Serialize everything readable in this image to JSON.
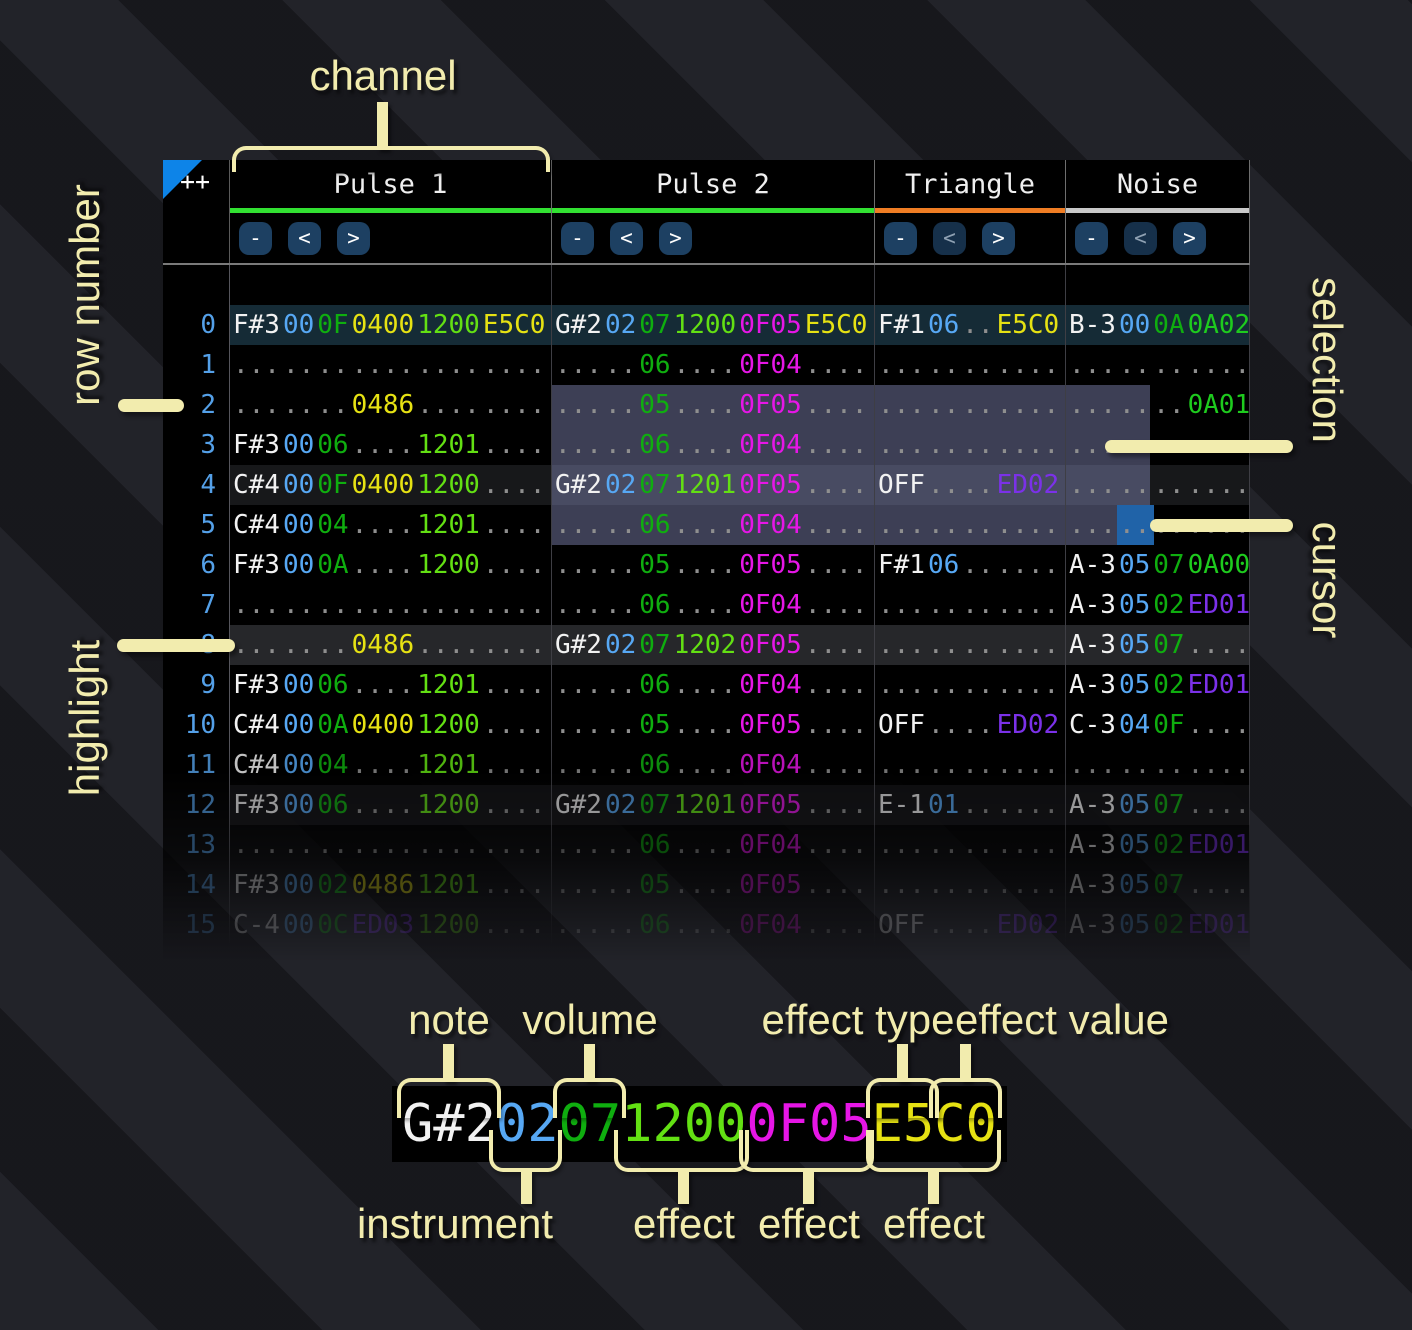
{
  "annotations": {
    "channel": "channel",
    "row_number": "row number",
    "selection": "selection",
    "cursor": "cursor",
    "highlight": "highlight",
    "note": "note",
    "volume": "volume",
    "effect_type": "effect type",
    "effect_value": "effect value",
    "instrument": "instrument",
    "effect": "effect"
  },
  "colors": {
    "note": "#f2f2f2",
    "ins": "#57a8f4",
    "vol": "#0fae0f",
    "fxy": "#e6e213",
    "fxl": "#63e013",
    "fxm": "#e616e6",
    "fxp": "#7b31e8",
    "fxg": "#1ecb1e",
    "dot": "#8f8f8f",
    "rownum": "#54a0e8",
    "cream": "#f2ecae",
    "selection": "rgba(124,129,173,0.49)",
    "cursor": "#2063a8",
    "hl0": "#152b36",
    "hl1": "#17181a",
    "hl2": "#26272a",
    "corner_triangle": "#0d84e8"
  },
  "tracker": {
    "corner": "++",
    "channels": [
      {
        "name": "Pulse 1",
        "bar": "#32e132",
        "buttons": [
          "-",
          "<",
          ">"
        ],
        "less_disabled": false
      },
      {
        "name": "Pulse 2",
        "bar": "#32e132",
        "buttons": [
          "-",
          "<",
          ">"
        ],
        "less_disabled": false
      },
      {
        "name": "Triangle",
        "bar": "#ef7d24",
        "buttons": [
          "-",
          "<",
          ">"
        ],
        "less_disabled": true
      },
      {
        "name": "Noise",
        "bar": "#c8c8c8",
        "buttons": [
          "-",
          "<",
          ">"
        ],
        "less_disabled": true
      }
    ],
    "highlight_rows": {
      "0": "hl0",
      "4": "hl1",
      "8": "hl2",
      "12": "hl1"
    },
    "rows": [
      {
        "n": "0",
        "p1": [
          "F#3",
          "00",
          "0F",
          "0400",
          "1200",
          "E5C0"
        ],
        "p2": [
          "G#2",
          "02",
          "07",
          "1200",
          "0F05",
          "E5C0"
        ],
        "t": [
          "F#1",
          "06",
          "..",
          "E5C0"
        ],
        "no": [
          "B-3",
          "00",
          "0A",
          "0A02"
        ]
      },
      {
        "n": "1",
        "p1": [
          "...",
          "..",
          "..",
          "....",
          "....",
          "...."
        ],
        "p2": [
          "...",
          "..",
          "06",
          "....",
          "0F04",
          "...."
        ],
        "t": [
          "...",
          "..",
          "..",
          "...."
        ],
        "no": [
          "...",
          "..",
          "..",
          "...."
        ]
      },
      {
        "n": "2",
        "p1": [
          "...",
          "..",
          "..",
          "0486",
          "....",
          "...."
        ],
        "p2": [
          "...",
          "..",
          "05",
          "....",
          "0F05",
          "...."
        ],
        "t": [
          "...",
          "..",
          "..",
          "...."
        ],
        "no": [
          "...",
          "..",
          "..",
          "0A01"
        ]
      },
      {
        "n": "3",
        "p1": [
          "F#3",
          "00",
          "06",
          "....",
          "1201",
          "...."
        ],
        "p2": [
          "...",
          "..",
          "06",
          "....",
          "0F04",
          "...."
        ],
        "t": [
          "...",
          "..",
          "..",
          "...."
        ],
        "no": [
          "...",
          "..",
          "..",
          "...."
        ]
      },
      {
        "n": "4",
        "p1": [
          "C#4",
          "00",
          "0F",
          "0400",
          "1200",
          "...."
        ],
        "p2": [
          "G#2",
          "02",
          "07",
          "1201",
          "0F05",
          "...."
        ],
        "t": [
          "OFF",
          "..",
          "..",
          "ED02"
        ],
        "no": [
          "...",
          "..",
          "..",
          "...."
        ]
      },
      {
        "n": "5",
        "p1": [
          "C#4",
          "00",
          "04",
          "....",
          "1201",
          "...."
        ],
        "p2": [
          "...",
          "..",
          "06",
          "....",
          "0F04",
          "...."
        ],
        "t": [
          "...",
          "..",
          "..",
          "...."
        ],
        "no": [
          "...",
          "..",
          "..",
          "...."
        ]
      },
      {
        "n": "6",
        "p1": [
          "F#3",
          "00",
          "0A",
          "....",
          "1200",
          "...."
        ],
        "p2": [
          "...",
          "..",
          "05",
          "....",
          "0F05",
          "...."
        ],
        "t": [
          "F#1",
          "06",
          "..",
          "...."
        ],
        "no": [
          "A-3",
          "05",
          "07",
          "0A00"
        ]
      },
      {
        "n": "7",
        "p1": [
          "...",
          "..",
          "..",
          "....",
          "....",
          "...."
        ],
        "p2": [
          "...",
          "..",
          "06",
          "....",
          "0F04",
          "...."
        ],
        "t": [
          "...",
          "..",
          "..",
          "...."
        ],
        "no": [
          "A-3",
          "05",
          "02",
          "ED01"
        ]
      },
      {
        "n": "8",
        "p1": [
          "...",
          "..",
          "..",
          "0486",
          "....",
          "...."
        ],
        "p2": [
          "G#2",
          "02",
          "07",
          "1202",
          "0F05",
          "...."
        ],
        "t": [
          "...",
          "..",
          "..",
          "...."
        ],
        "no": [
          "A-3",
          "05",
          "07",
          "...."
        ]
      },
      {
        "n": "9",
        "p1": [
          "F#3",
          "00",
          "06",
          "....",
          "1201",
          "...."
        ],
        "p2": [
          "...",
          "..",
          "06",
          "....",
          "0F04",
          "...."
        ],
        "t": [
          "...",
          "..",
          "..",
          "...."
        ],
        "no": [
          "A-3",
          "05",
          "02",
          "ED01"
        ]
      },
      {
        "n": "10",
        "p1": [
          "C#4",
          "00",
          "0A",
          "0400",
          "1200",
          "...."
        ],
        "p2": [
          "...",
          "..",
          "05",
          "....",
          "0F05",
          "...."
        ],
        "t": [
          "OFF",
          "..",
          "..",
          "ED02"
        ],
        "no": [
          "C-3",
          "04",
          "0F",
          "...."
        ]
      },
      {
        "n": "11",
        "p1": [
          "C#4",
          "00",
          "04",
          "....",
          "1201",
          "...."
        ],
        "p2": [
          "...",
          "..",
          "06",
          "....",
          "0F04",
          "...."
        ],
        "t": [
          "...",
          "..",
          "..",
          "...."
        ],
        "no": [
          "...",
          "..",
          "..",
          "...."
        ]
      },
      {
        "n": "12",
        "p1": [
          "F#3",
          "00",
          "06",
          "....",
          "1200",
          "...."
        ],
        "p2": [
          "G#2",
          "02",
          "07",
          "1201",
          "0F05",
          "...."
        ],
        "t": [
          "E-1",
          "01",
          "..",
          "...."
        ],
        "no": [
          "A-3",
          "05",
          "07",
          "...."
        ]
      },
      {
        "n": "13",
        "p1": [
          "...",
          "..",
          "..",
          "....",
          "....",
          "...."
        ],
        "p2": [
          "...",
          "..",
          "06",
          "....",
          "0F04",
          "...."
        ],
        "t": [
          "...",
          "..",
          "..",
          "...."
        ],
        "no": [
          "A-3",
          "05",
          "02",
          "ED01"
        ]
      },
      {
        "n": "14",
        "p1": [
          "F#3",
          "00",
          "02",
          "0486",
          "1201",
          "...."
        ],
        "p2": [
          "...",
          "..",
          "05",
          "....",
          "0F05",
          "...."
        ],
        "t": [
          "...",
          "..",
          "..",
          "...."
        ],
        "no": [
          "A-3",
          "05",
          "07",
          "...."
        ]
      },
      {
        "n": "15",
        "p1": [
          "C-4",
          "00",
          "0C",
          "ED03",
          "1200",
          "...."
        ],
        "p2": [
          "...",
          "..",
          "06",
          "....",
          "0F04",
          "...."
        ],
        "t": [
          "OFF",
          "..",
          "..",
          "ED02"
        ],
        "no": [
          "A-3",
          "05",
          "02",
          "ED01"
        ]
      }
    ]
  },
  "example": {
    "segments": [
      {
        "t": "G#2",
        "k": "note"
      },
      {
        "t": "02",
        "k": "ins"
      },
      {
        "t": "07",
        "k": "vol"
      },
      {
        "t": "1200",
        "k": "fxl"
      },
      {
        "t": "0F05",
        "k": "fxm"
      },
      {
        "t": "E5C0",
        "k": "fxy"
      }
    ]
  }
}
